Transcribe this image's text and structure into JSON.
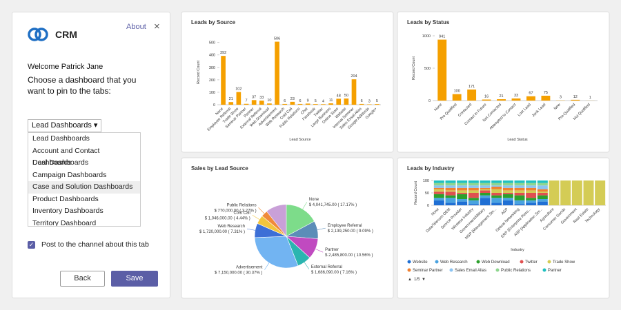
{
  "panel": {
    "brand": "CRM",
    "about": "About",
    "welcome": "Welcome Patrick Jane",
    "prompt": "Choose a dashboard that you want to pin to the tabs:",
    "dropdown": "Lead Dashboards",
    "options": [
      "Lead Dashboards",
      "Account and Contact Dashboards",
      "Deal Dashboards",
      "Campaign Dashboards",
      "Case and Solution Dashboards",
      "Product Dashboards",
      "Inventory Dashboards",
      "Territory Dashboard"
    ],
    "checkbox": "Post to the channel about this tab",
    "back": "Back",
    "save": "Save"
  },
  "chart_data": [
    {
      "type": "bar",
      "title": "Leads by Source",
      "x_label": "Lead Source",
      "y_label": "Record Count",
      "color": "#f5a000",
      "categories": [
        "None",
        "Employee Referral",
        "Trade Show",
        "Seminar Partner",
        "Partner",
        "External Referral",
        "Web Download",
        "Advertisement",
        "Web Research",
        "Cold Call",
        "Public Relations",
        "Chat",
        "Facebook",
        "Twitter",
        "Large Business",
        "Online Store",
        "Website",
        "Internal Seminar",
        "Sales Email Alias",
        "Google AdWords",
        "Google+"
      ],
      "values": [
        392,
        21,
        102,
        7,
        37,
        33,
        10,
        506,
        6,
        23,
        6,
        9,
        5,
        4,
        11,
        48,
        50,
        204,
        6,
        3,
        5
      ],
      "ylim": [
        0,
        520
      ],
      "yticks": [
        0,
        100,
        200,
        300,
        400,
        500
      ]
    },
    {
      "type": "bar",
      "title": "Leads by Status",
      "x_label": "Lead Status",
      "y_label": "Record Count",
      "color": "#f5a000",
      "categories": [
        "None",
        "Pre Qualified",
        "Contacted",
        "Contact in Future",
        "Not Contacted",
        "Attempted to Contact",
        "Lost Lead",
        "Junk Lead",
        "New",
        "Pre-Qualified",
        "Not Qualified"
      ],
      "values": [
        941,
        100,
        171,
        16,
        21,
        33,
        67,
        75,
        3,
        12,
        1
      ],
      "ylim": [
        0,
        1000
      ],
      "yticks": [
        0,
        500,
        1000
      ]
    },
    {
      "type": "pie",
      "title": "Sales by Lead Source",
      "categories": [
        "None",
        "Employee Referral",
        "Partner",
        "External Referral",
        "Advertisement",
        "Web Research",
        "Cold Call",
        "Public Relations"
      ],
      "values": [
        4041745,
        2139250,
        2485800,
        1686090,
        7150000,
        1720000,
        1046000,
        770000
      ],
      "percents": [
        17.17,
        9.09,
        10.56,
        7.16,
        30.37,
        7.31,
        4.44,
        3.27
      ],
      "value_labels": [
        "$ 4,041,745.00 ( 17.17% )",
        "$ 2,139,250.00 ( 9.09% )",
        "$ 2,485,800.00 ( 10.56% )",
        "$ 1,686,090.00 ( 7.16% )",
        "$ 7,150,000.00 ( 30.37% )",
        "$ 1,720,000.00 ( 7.31% )",
        "$ 1,046,000.00 ( 4.44% )",
        "$ 770,000.00 ( 3.27% )"
      ],
      "colors": [
        "#7ddc8a",
        "#5b8db8",
        "#c04ac0",
        "#2bb5b0",
        "#72b4f2",
        "#3d6fd6",
        "#f2c53d",
        "#f08a3a"
      ]
    },
    {
      "type": "stacked_bar",
      "title": "Leads by Industry",
      "x_label": "Industry",
      "y_label": "Record Count",
      "legend_page": "1/5",
      "categories": [
        "None",
        "Data/Telecom OEM",
        "Service Provider",
        "Wireless Industry",
        "Government/Military",
        "MSP (Management Ser...",
        "ASP",
        "Optical Networking",
        "ERP (Enterprise Reso...",
        "ASP (Application Ser...",
        "Agriculture",
        "Consumer Goods",
        "Government",
        "Real Estate",
        "Technology"
      ],
      "ylim": [
        0,
        100
      ],
      "yticks": [
        0,
        50,
        100
      ],
      "series": [
        {
          "name": "Website",
          "color": "#1f6fd4",
          "values": [
            20,
            10,
            15,
            5,
            30,
            10,
            20,
            5,
            10,
            15,
            0,
            0,
            0,
            0,
            0
          ]
        },
        {
          "name": "Web Research",
          "color": "#4aa3e0",
          "values": [
            10,
            20,
            10,
            15,
            10,
            20,
            10,
            15,
            10,
            10,
            0,
            0,
            0,
            0,
            0
          ]
        },
        {
          "name": "Web Download",
          "color": "#2ca02c",
          "values": [
            15,
            10,
            20,
            10,
            10,
            10,
            15,
            20,
            10,
            15,
            0,
            0,
            0,
            0,
            0
          ]
        },
        {
          "name": "Twitter",
          "color": "#e05050",
          "values": [
            10,
            15,
            5,
            20,
            10,
            10,
            5,
            10,
            20,
            10,
            0,
            0,
            0,
            0,
            0
          ]
        },
        {
          "name": "Trade Show",
          "color": "#d4cc55",
          "values": [
            10,
            5,
            10,
            10,
            5,
            15,
            10,
            10,
            10,
            5,
            100,
            100,
            100,
            100,
            100
          ]
        },
        {
          "name": "Seminar Partner",
          "color": "#f08030",
          "values": [
            5,
            10,
            10,
            10,
            5,
            10,
            10,
            10,
            10,
            10,
            0,
            0,
            0,
            0,
            0
          ]
        },
        {
          "name": "Sales Email Alias",
          "color": "#8cc4f2",
          "values": [
            10,
            10,
            10,
            10,
            10,
            5,
            10,
            10,
            10,
            15,
            0,
            0,
            0,
            0,
            0
          ]
        },
        {
          "name": "Public Relations",
          "color": "#8fd68f",
          "values": [
            10,
            10,
            10,
            10,
            10,
            10,
            10,
            10,
            10,
            10,
            0,
            0,
            0,
            0,
            0
          ]
        },
        {
          "name": "Partner",
          "color": "#20c0c0",
          "values": [
            10,
            10,
            10,
            10,
            10,
            10,
            10,
            10,
            10,
            10,
            0,
            0,
            0,
            0,
            0
          ]
        }
      ]
    }
  ]
}
